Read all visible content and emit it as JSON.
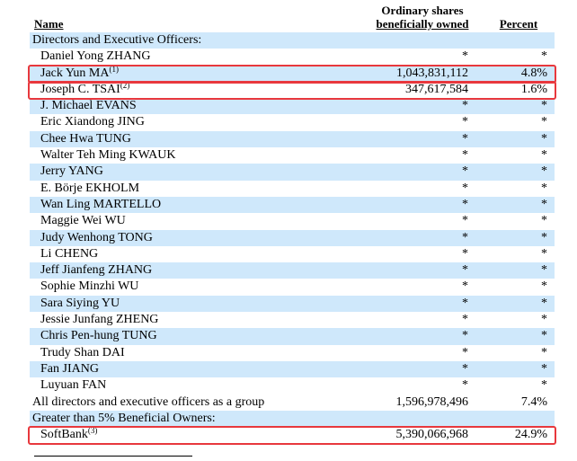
{
  "header": {
    "name": "Name",
    "shares_line1": "Ordinary shares",
    "shares_line2": "beneficially owned",
    "percent": "Percent"
  },
  "rows": [
    {
      "name": "Directors and Executive Officers:",
      "shares": "",
      "percent": "",
      "section": true,
      "shaded": true
    },
    {
      "name": "Daniel Yong ZHANG",
      "shares": "*",
      "percent": "*",
      "shaded": false
    },
    {
      "name": "Jack Yun MA",
      "note": "(1)",
      "shares": "1,043,831,112",
      "percent": "4.8%",
      "shaded": true,
      "highlight": true
    },
    {
      "name": "Joseph C. TSAI",
      "note": "(2)",
      "shares": "347,617,584",
      "percent": "1.6%",
      "shaded": false,
      "highlight": true
    },
    {
      "name": "J. Michael EVANS",
      "shares": "*",
      "percent": "*",
      "shaded": true
    },
    {
      "name": "Eric Xiandong JING",
      "shares": "*",
      "percent": "*",
      "shaded": false
    },
    {
      "name": "Chee Hwa TUNG",
      "shares": "*",
      "percent": "*",
      "shaded": true
    },
    {
      "name": "Walter Teh Ming KWAUK",
      "shares": "*",
      "percent": "*",
      "shaded": false
    },
    {
      "name": "Jerry YANG",
      "shares": "*",
      "percent": "*",
      "shaded": true
    },
    {
      "name": "E. Börje EKHOLM",
      "shares": "*",
      "percent": "*",
      "shaded": false
    },
    {
      "name": "Wan Ling MARTELLO",
      "shares": "*",
      "percent": "*",
      "shaded": true
    },
    {
      "name": "Maggie Wei WU",
      "shares": "*",
      "percent": "*",
      "shaded": false
    },
    {
      "name": "Judy Wenhong TONG",
      "shares": "*",
      "percent": "*",
      "shaded": true
    },
    {
      "name": "Li CHENG",
      "shares": "*",
      "percent": "*",
      "shaded": false
    },
    {
      "name": "Jeff Jianfeng ZHANG",
      "shares": "*",
      "percent": "*",
      "shaded": true
    },
    {
      "name": "Sophie Minzhi WU",
      "shares": "*",
      "percent": "*",
      "shaded": false
    },
    {
      "name": "Sara Siying YU",
      "shares": "*",
      "percent": "*",
      "shaded": true
    },
    {
      "name": "Jessie Junfang ZHENG",
      "shares": "*",
      "percent": "*",
      "shaded": false
    },
    {
      "name": "Chris Pen-hung TUNG",
      "shares": "*",
      "percent": "*",
      "shaded": true
    },
    {
      "name": "Trudy Shan DAI",
      "shares": "*",
      "percent": "*",
      "shaded": false
    },
    {
      "name": "Fan JIANG",
      "shares": "*",
      "percent": "*",
      "shaded": true
    },
    {
      "name": "Luyuan FAN",
      "shares": "*",
      "percent": "*",
      "shaded": false
    },
    {
      "name": "All directors and executive officers as a group",
      "shares": "1,596,978,496",
      "percent": "7.4%",
      "section": true,
      "shaded": false
    },
    {
      "name": "Greater than 5% Beneficial Owners:",
      "shares": "",
      "percent": "",
      "section": true,
      "shaded": true
    },
    {
      "name": "SoftBank",
      "note": "(3)",
      "shares": "5,390,066,968",
      "percent": "24.9%",
      "shaded": false,
      "highlight": true
    }
  ],
  "colors": {
    "row_shade": "#cfe8fb",
    "highlight_border": "#e8383d"
  }
}
